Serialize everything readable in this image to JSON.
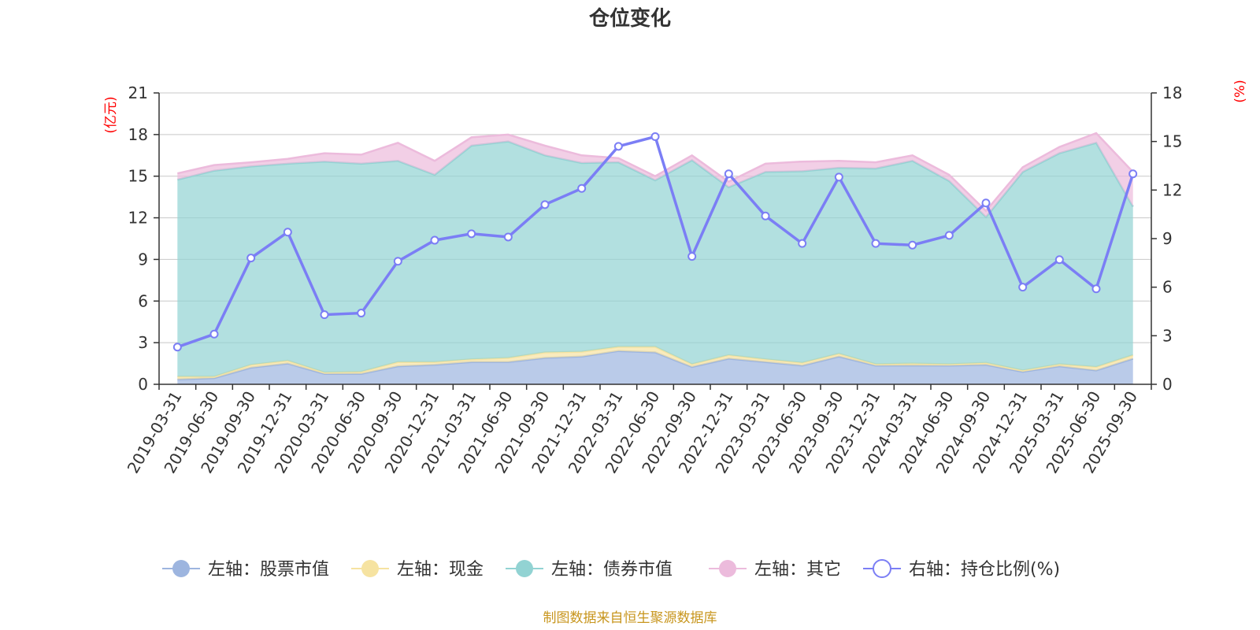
{
  "chart_data": {
    "type": "area",
    "title": "仓位变化",
    "left_axis_unit": "(亿元)",
    "right_axis_unit": "(%)",
    "left_ylim": [
      0,
      21
    ],
    "left_ticks": [
      0,
      3,
      6,
      9,
      12,
      15,
      18,
      21
    ],
    "right_ylim": [
      0,
      18
    ],
    "right_ticks": [
      0,
      3,
      6,
      9,
      12,
      15,
      18
    ],
    "categories": [
      "2019-03-31",
      "2019-06-30",
      "2019-09-30",
      "2019-12-31",
      "2020-03-31",
      "2020-06-30",
      "2020-09-30",
      "2020-12-31",
      "2021-03-31",
      "2021-06-30",
      "2021-09-30",
      "2021-12-31",
      "2022-03-31",
      "2022-06-30",
      "2022-09-30",
      "2022-12-31",
      "2023-03-31",
      "2023-06-30",
      "2023-09-30",
      "2023-12-31",
      "2024-03-31",
      "2024-06-30",
      "2024-09-30",
      "2024-12-31",
      "2025-03-31",
      "2025-06-30",
      "2025-09-30"
    ],
    "stacked_series": [
      {
        "name": "左轴：股票市值",
        "color": "#9db5df",
        "values": [
          0.35,
          0.45,
          1.2,
          1.5,
          0.75,
          0.75,
          1.3,
          1.4,
          1.6,
          1.6,
          1.9,
          2.0,
          2.4,
          2.3,
          1.25,
          1.85,
          1.6,
          1.35,
          2.0,
          1.35,
          1.35,
          1.35,
          1.4,
          0.9,
          1.3,
          1.0,
          1.85
        ]
      },
      {
        "name": "左轴：现金",
        "color": "#f6e3a1",
        "values": [
          0.2,
          0.1,
          0.2,
          0.2,
          0.1,
          0.15,
          0.3,
          0.2,
          0.2,
          0.3,
          0.4,
          0.35,
          0.3,
          0.4,
          0.2,
          0.25,
          0.2,
          0.2,
          0.2,
          0.1,
          0.15,
          0.1,
          0.15,
          0.1,
          0.15,
          0.25,
          0.25
        ]
      },
      {
        "name": "左轴：债券市值",
        "color": "#92d3d3",
        "values": [
          14.2,
          14.85,
          14.3,
          14.2,
          15.2,
          15.0,
          14.5,
          13.5,
          15.4,
          15.6,
          14.2,
          13.6,
          13.3,
          12.0,
          14.7,
          12.1,
          13.5,
          13.8,
          13.4,
          14.1,
          14.6,
          13.2,
          10.5,
          14.3,
          15.2,
          16.15,
          10.7
        ]
      },
      {
        "name": "左轴：其它",
        "color": "#ecbbdc",
        "values": [
          0.45,
          0.4,
          0.3,
          0.35,
          0.6,
          0.65,
          1.3,
          1.0,
          0.6,
          0.5,
          0.7,
          0.55,
          0.3,
          0.3,
          0.35,
          0.4,
          0.6,
          0.7,
          0.5,
          0.45,
          0.4,
          0.45,
          0.45,
          0.35,
          0.45,
          0.7,
          2.5
        ]
      }
    ],
    "line_series": {
      "name": "右轴：持仓比例(%)",
      "axis": "right",
      "color": "#7b7ef5",
      "values": [
        2.3,
        3.1,
        7.8,
        9.4,
        4.3,
        4.4,
        7.6,
        8.9,
        9.3,
        9.1,
        11.1,
        12.1,
        14.7,
        15.3,
        7.9,
        13.0,
        10.4,
        8.7,
        12.8,
        8.7,
        8.6,
        9.2,
        11.2,
        6.0,
        7.7,
        5.9,
        13.0
      ]
    },
    "source_note": "制图数据来自恒生聚源数据库"
  }
}
